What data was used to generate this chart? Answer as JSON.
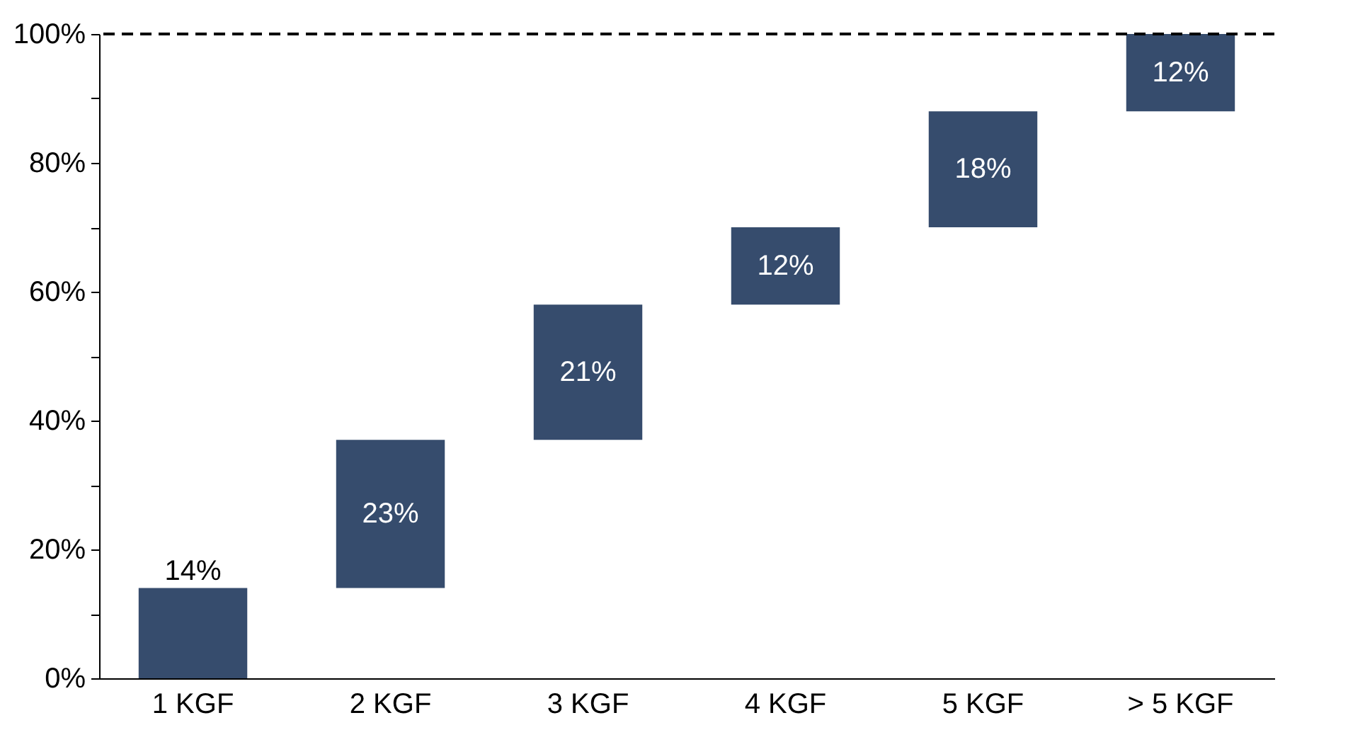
{
  "chart_data": {
    "type": "bar",
    "categories": [
      "1 KGF",
      "2 KGF",
      "3 KGF",
      "4 KGF",
      "5 KGF",
      "> 5 KGF"
    ],
    "values": [
      14,
      23,
      21,
      12,
      18,
      12
    ],
    "base": [
      0,
      14,
      37,
      58,
      70,
      88
    ],
    "value_labels": [
      "14%",
      "23%",
      "21%",
      "12%",
      "18%",
      "12%"
    ],
    "color": "#364c6d",
    "ylim": [
      0,
      100
    ],
    "yticks": [
      {
        "value": 0,
        "label": "0%"
      },
      {
        "value": 10,
        "label": null
      },
      {
        "value": 20,
        "label": "20%"
      },
      {
        "value": 30,
        "label": null
      },
      {
        "value": 40,
        "label": "40%"
      },
      {
        "value": 50,
        "label": null
      },
      {
        "value": 60,
        "label": "60%"
      },
      {
        "value": 70,
        "label": null
      },
      {
        "value": 80,
        "label": "80%"
      },
      {
        "value": 90,
        "label": null
      },
      {
        "value": 100,
        "label": "100%"
      }
    ],
    "ref_lines": [
      {
        "axis": "y",
        "value": 100,
        "line_style": "dashed",
        "color": "#000000"
      }
    ],
    "grid": false
  }
}
